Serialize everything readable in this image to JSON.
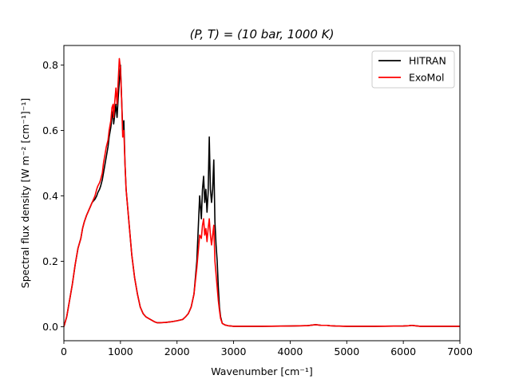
{
  "chart_data": {
    "type": "line",
    "title": "(P, T) = (10 bar, 1000 K)",
    "xlabel": "Wavenumber [cm⁻¹]",
    "ylabel": "Spectral flux density [W m⁻² [cm⁻¹]⁻¹]",
    "xlim": [
      0,
      7000
    ],
    "ylim": [
      -0.043,
      0.86
    ],
    "xticks": [
      0,
      1000,
      2000,
      3000,
      4000,
      5000,
      6000,
      7000
    ],
    "xtick_labels": [
      "0",
      "1000",
      "2000",
      "3000",
      "4000",
      "5000",
      "6000",
      "7000"
    ],
    "yticks": [
      0.0,
      0.2,
      0.4,
      0.6,
      0.8
    ],
    "ytick_labels": [
      "0.0",
      "0.2",
      "0.4",
      "0.6",
      "0.8"
    ],
    "grid": false,
    "legend_position": "top-right",
    "series": [
      {
        "name": "HITRAN",
        "color": "#000000",
        "x": [
          0,
          50,
          100,
          150,
          200,
          250,
          300,
          330,
          360,
          400,
          450,
          500,
          550,
          580,
          600,
          630,
          650,
          680,
          700,
          730,
          750,
          780,
          800,
          830,
          850,
          870,
          880,
          900,
          920,
          940,
          960,
          980,
          1000,
          1020,
          1040,
          1060,
          1080,
          1100,
          1130,
          1160,
          1200,
          1250,
          1300,
          1350,
          1400,
          1450,
          1500,
          1550,
          1600,
          1650,
          1700,
          1800,
          1900,
          2000,
          2100,
          2150,
          2200,
          2250,
          2300,
          2350,
          2400,
          2430,
          2450,
          2470,
          2490,
          2510,
          2530,
          2550,
          2570,
          2590,
          2610,
          2630,
          2650,
          2670,
          2690,
          2710,
          2730,
          2750,
          2770,
          2800,
          2850,
          2900,
          2950,
          3000,
          3100,
          3500,
          4000,
          4300,
          4400,
          4450,
          4500,
          4550,
          4600,
          4650,
          4700,
          4800,
          5000,
          5500,
          6000,
          6100,
          6150,
          6200,
          6250,
          6300,
          6500,
          7000
        ],
        "y": [
          0.0,
          0.03,
          0.08,
          0.13,
          0.19,
          0.24,
          0.27,
          0.3,
          0.32,
          0.34,
          0.36,
          0.38,
          0.39,
          0.4,
          0.41,
          0.42,
          0.43,
          0.45,
          0.47,
          0.5,
          0.52,
          0.55,
          0.58,
          0.61,
          0.64,
          0.66,
          0.62,
          0.65,
          0.68,
          0.64,
          0.7,
          0.75,
          0.8,
          0.7,
          0.6,
          0.63,
          0.5,
          0.42,
          0.36,
          0.3,
          0.22,
          0.15,
          0.1,
          0.06,
          0.04,
          0.03,
          0.025,
          0.02,
          0.015,
          0.012,
          0.012,
          0.013,
          0.015,
          0.018,
          0.022,
          0.03,
          0.04,
          0.06,
          0.1,
          0.2,
          0.4,
          0.33,
          0.42,
          0.46,
          0.38,
          0.42,
          0.35,
          0.41,
          0.58,
          0.42,
          0.38,
          0.42,
          0.51,
          0.32,
          0.25,
          0.2,
          0.12,
          0.06,
          0.03,
          0.01,
          0.005,
          0.003,
          0.002,
          0.001,
          0.001,
          0.001,
          0.002,
          0.003,
          0.005,
          0.006,
          0.005,
          0.004,
          0.004,
          0.004,
          0.003,
          0.002,
          0.001,
          0.001,
          0.002,
          0.003,
          0.004,
          0.003,
          0.002,
          0.001,
          0.001,
          0.001
        ]
      },
      {
        "name": "ExoMol",
        "color": "#ff0000",
        "x": [
          0,
          50,
          100,
          150,
          200,
          250,
          300,
          330,
          360,
          400,
          450,
          500,
          550,
          580,
          600,
          630,
          650,
          680,
          700,
          730,
          750,
          780,
          800,
          830,
          850,
          870,
          880,
          900,
          920,
          940,
          960,
          980,
          1000,
          1020,
          1040,
          1060,
          1080,
          1100,
          1130,
          1160,
          1200,
          1250,
          1300,
          1350,
          1400,
          1450,
          1500,
          1550,
          1600,
          1650,
          1700,
          1800,
          1900,
          2000,
          2100,
          2150,
          2200,
          2250,
          2300,
          2350,
          2400,
          2430,
          2450,
          2470,
          2490,
          2510,
          2530,
          2550,
          2570,
          2590,
          2610,
          2630,
          2650,
          2670,
          2690,
          2710,
          2730,
          2750,
          2770,
          2800,
          2850,
          2900,
          2950,
          3000,
          3100,
          3500,
          4000,
          4300,
          4400,
          4450,
          4500,
          4550,
          4600,
          4650,
          4700,
          4800,
          5000,
          5500,
          6000,
          6100,
          6150,
          6200,
          6250,
          6300,
          6500,
          7000
        ],
        "y": [
          0.0,
          0.03,
          0.08,
          0.13,
          0.19,
          0.24,
          0.27,
          0.3,
          0.32,
          0.34,
          0.36,
          0.38,
          0.4,
          0.42,
          0.43,
          0.44,
          0.45,
          0.47,
          0.5,
          0.53,
          0.55,
          0.57,
          0.6,
          0.63,
          0.67,
          0.68,
          0.64,
          0.69,
          0.73,
          0.68,
          0.75,
          0.82,
          0.79,
          0.7,
          0.58,
          0.6,
          0.5,
          0.42,
          0.36,
          0.3,
          0.22,
          0.15,
          0.1,
          0.06,
          0.04,
          0.03,
          0.025,
          0.02,
          0.015,
          0.012,
          0.012,
          0.013,
          0.015,
          0.018,
          0.022,
          0.03,
          0.04,
          0.06,
          0.1,
          0.18,
          0.28,
          0.27,
          0.31,
          0.33,
          0.28,
          0.3,
          0.26,
          0.3,
          0.33,
          0.28,
          0.25,
          0.28,
          0.31,
          0.2,
          0.16,
          0.12,
          0.08,
          0.05,
          0.025,
          0.01,
          0.005,
          0.003,
          0.002,
          0.001,
          0.001,
          0.001,
          0.002,
          0.003,
          0.005,
          0.006,
          0.005,
          0.004,
          0.004,
          0.004,
          0.003,
          0.002,
          0.001,
          0.001,
          0.002,
          0.003,
          0.004,
          0.003,
          0.002,
          0.001,
          0.001,
          0.001
        ]
      }
    ]
  }
}
